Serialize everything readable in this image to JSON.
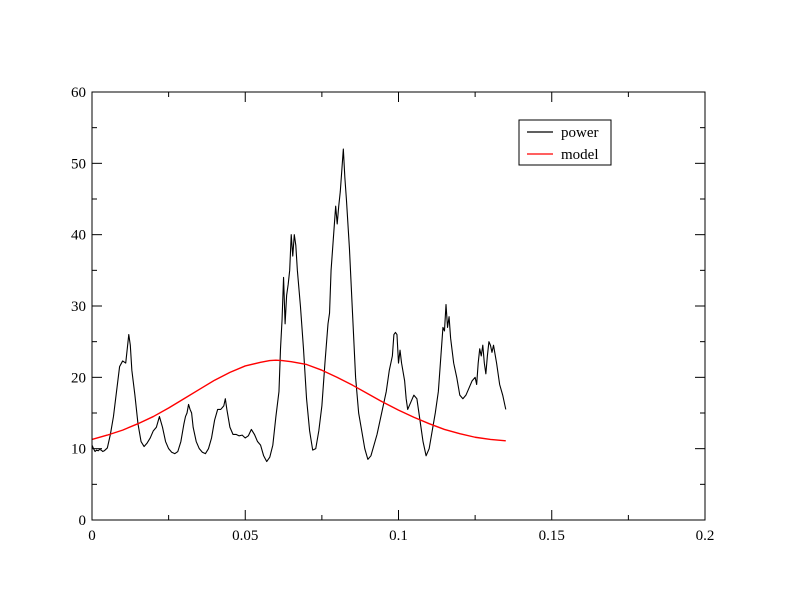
{
  "chart_data": {
    "type": "line",
    "title": "",
    "xlabel": "",
    "ylabel": "",
    "xlim": [
      0,
      0.2
    ],
    "ylim": [
      0,
      60
    ],
    "x_ticks": [
      0,
      0.05,
      0.1,
      0.15,
      0.2
    ],
    "x_tick_labels": [
      "0",
      "0.05",
      "0.1",
      "0.15",
      "0.2"
    ],
    "y_ticks": [
      0,
      10,
      20,
      30,
      40,
      50,
      60
    ],
    "y_tick_labels": [
      "0",
      "10",
      "20",
      "30",
      "40",
      "50",
      "60"
    ],
    "grid": false,
    "legend_position": "top-right",
    "series": [
      {
        "name": "power",
        "color": "#000000",
        "points": [
          [
            0.0,
            10.5
          ],
          [
            0.0005,
            10.0
          ],
          [
            0.001,
            9.6
          ],
          [
            0.0015,
            9.8
          ],
          [
            0.002,
            9.7
          ],
          [
            0.0025,
            9.9
          ],
          [
            0.003,
            9.8
          ],
          [
            0.0035,
            9.6
          ],
          [
            0.004,
            9.7
          ],
          [
            0.005,
            10.1
          ],
          [
            0.006,
            12.0
          ],
          [
            0.007,
            14.5
          ],
          [
            0.008,
            18.0
          ],
          [
            0.009,
            21.5
          ],
          [
            0.01,
            22.3
          ],
          [
            0.011,
            22.0
          ],
          [
            0.0115,
            24.0
          ],
          [
            0.012,
            26.0
          ],
          [
            0.0125,
            24.5
          ],
          [
            0.013,
            21.0
          ],
          [
            0.014,
            17.5
          ],
          [
            0.015,
            13.5
          ],
          [
            0.016,
            11.0
          ],
          [
            0.017,
            10.3
          ],
          [
            0.018,
            10.8
          ],
          [
            0.019,
            11.5
          ],
          [
            0.02,
            12.5
          ],
          [
            0.021,
            13.0
          ],
          [
            0.022,
            14.5
          ],
          [
            0.023,
            13.0
          ],
          [
            0.024,
            11.0
          ],
          [
            0.025,
            10.0
          ],
          [
            0.026,
            9.5
          ],
          [
            0.027,
            9.3
          ],
          [
            0.028,
            9.6
          ],
          [
            0.029,
            11.0
          ],
          [
            0.03,
            13.5
          ],
          [
            0.0305,
            14.5
          ],
          [
            0.031,
            15.0
          ],
          [
            0.0315,
            16.2
          ],
          [
            0.032,
            15.5
          ],
          [
            0.0325,
            15.0
          ],
          [
            0.033,
            13.0
          ],
          [
            0.034,
            11.0
          ],
          [
            0.035,
            10.0
          ],
          [
            0.036,
            9.5
          ],
          [
            0.037,
            9.3
          ],
          [
            0.038,
            10.0
          ],
          [
            0.039,
            11.5
          ],
          [
            0.04,
            14.0
          ],
          [
            0.041,
            15.5
          ],
          [
            0.042,
            15.5
          ],
          [
            0.043,
            16.0
          ],
          [
            0.0435,
            17.0
          ],
          [
            0.044,
            15.5
          ],
          [
            0.045,
            13.0
          ],
          [
            0.046,
            12.0
          ],
          [
            0.047,
            12.0
          ],
          [
            0.048,
            11.8
          ],
          [
            0.049,
            11.9
          ],
          [
            0.05,
            11.5
          ],
          [
            0.051,
            11.8
          ],
          [
            0.052,
            12.7
          ],
          [
            0.053,
            12.0
          ],
          [
            0.054,
            11.0
          ],
          [
            0.055,
            10.5
          ],
          [
            0.056,
            9.0
          ],
          [
            0.057,
            8.2
          ],
          [
            0.058,
            8.8
          ],
          [
            0.059,
            10.5
          ],
          [
            0.06,
            14.5
          ],
          [
            0.061,
            18.0
          ],
          [
            0.0615,
            24.0
          ],
          [
            0.062,
            28.0
          ],
          [
            0.0625,
            34.0
          ],
          [
            0.063,
            27.5
          ],
          [
            0.0635,
            31.5
          ],
          [
            0.064,
            33.0
          ],
          [
            0.0645,
            35.0
          ],
          [
            0.065,
            40.0
          ],
          [
            0.0655,
            37.0
          ],
          [
            0.066,
            40.0
          ],
          [
            0.0665,
            38.5
          ],
          [
            0.067,
            35.0
          ],
          [
            0.068,
            30.0
          ],
          [
            0.069,
            24.0
          ],
          [
            0.07,
            17.0
          ],
          [
            0.071,
            12.5
          ],
          [
            0.072,
            9.8
          ],
          [
            0.073,
            10.0
          ],
          [
            0.074,
            12.5
          ],
          [
            0.075,
            16.0
          ],
          [
            0.076,
            22.0
          ],
          [
            0.077,
            27.5
          ],
          [
            0.0775,
            29.0
          ],
          [
            0.078,
            35.0
          ],
          [
            0.079,
            41.0
          ],
          [
            0.0795,
            44.0
          ],
          [
            0.08,
            41.5
          ],
          [
            0.0805,
            44.0
          ],
          [
            0.081,
            46.0
          ],
          [
            0.0815,
            49.0
          ],
          [
            0.082,
            52.0
          ],
          [
            0.0825,
            48.0
          ],
          [
            0.083,
            45.0
          ],
          [
            0.084,
            38.0
          ],
          [
            0.085,
            29.0
          ],
          [
            0.086,
            20.0
          ],
          [
            0.087,
            15.0
          ],
          [
            0.088,
            12.5
          ],
          [
            0.089,
            10.0
          ],
          [
            0.09,
            8.5
          ],
          [
            0.091,
            9.0
          ],
          [
            0.092,
            10.5
          ],
          [
            0.093,
            12.0
          ],
          [
            0.094,
            14.0
          ],
          [
            0.095,
            16.0
          ],
          [
            0.096,
            18.0
          ],
          [
            0.097,
            21.0
          ],
          [
            0.098,
            23.0
          ],
          [
            0.0985,
            26.0
          ],
          [
            0.099,
            26.3
          ],
          [
            0.0995,
            26.0
          ],
          [
            0.1,
            22.0
          ],
          [
            0.1005,
            23.8
          ],
          [
            0.101,
            22.0
          ],
          [
            0.102,
            19.5
          ],
          [
            0.1025,
            17.0
          ],
          [
            0.103,
            15.5
          ],
          [
            0.104,
            16.5
          ],
          [
            0.105,
            17.5
          ],
          [
            0.106,
            17.0
          ],
          [
            0.107,
            14.0
          ],
          [
            0.108,
            11.0
          ],
          [
            0.109,
            9.0
          ],
          [
            0.11,
            10.0
          ],
          [
            0.111,
            12.5
          ],
          [
            0.112,
            15.0
          ],
          [
            0.113,
            18.0
          ],
          [
            0.1135,
            21.0
          ],
          [
            0.114,
            24.0
          ],
          [
            0.1145,
            27.0
          ],
          [
            0.115,
            26.5
          ],
          [
            0.1155,
            30.2
          ],
          [
            0.116,
            27.0
          ],
          [
            0.1165,
            28.5
          ],
          [
            0.117,
            25.5
          ],
          [
            0.118,
            22.0
          ],
          [
            0.119,
            20.0
          ],
          [
            0.12,
            17.5
          ],
          [
            0.121,
            17.0
          ],
          [
            0.122,
            17.5
          ],
          [
            0.123,
            18.5
          ],
          [
            0.124,
            19.5
          ],
          [
            0.125,
            20.0
          ],
          [
            0.1255,
            19.0
          ],
          [
            0.126,
            22.0
          ],
          [
            0.1265,
            24.0
          ],
          [
            0.127,
            23.0
          ],
          [
            0.1275,
            24.5
          ],
          [
            0.128,
            22.0
          ],
          [
            0.1285,
            20.5
          ],
          [
            0.129,
            23.0
          ],
          [
            0.1295,
            25.0
          ],
          [
            0.13,
            24.5
          ],
          [
            0.1305,
            23.5
          ],
          [
            0.131,
            24.5
          ],
          [
            0.132,
            22.0
          ],
          [
            0.133,
            19.0
          ],
          [
            0.134,
            17.5
          ],
          [
            0.135,
            15.5
          ]
        ]
      },
      {
        "name": "model",
        "color": "#ff0000",
        "points": [
          [
            0.0,
            11.3
          ],
          [
            0.005,
            11.9
          ],
          [
            0.01,
            12.6
          ],
          [
            0.015,
            13.5
          ],
          [
            0.02,
            14.5
          ],
          [
            0.025,
            15.7
          ],
          [
            0.03,
            17.0
          ],
          [
            0.035,
            18.3
          ],
          [
            0.04,
            19.6
          ],
          [
            0.045,
            20.7
          ],
          [
            0.05,
            21.6
          ],
          [
            0.055,
            22.1
          ],
          [
            0.058,
            22.35
          ],
          [
            0.06,
            22.4
          ],
          [
            0.062,
            22.35
          ],
          [
            0.065,
            22.2
          ],
          [
            0.07,
            21.8
          ],
          [
            0.075,
            21.0
          ],
          [
            0.08,
            20.0
          ],
          [
            0.085,
            18.9
          ],
          [
            0.09,
            17.7
          ],
          [
            0.095,
            16.5
          ],
          [
            0.1,
            15.4
          ],
          [
            0.105,
            14.4
          ],
          [
            0.11,
            13.5
          ],
          [
            0.115,
            12.7
          ],
          [
            0.12,
            12.1
          ],
          [
            0.125,
            11.6
          ],
          [
            0.13,
            11.3
          ],
          [
            0.135,
            11.1
          ]
        ]
      }
    ]
  }
}
